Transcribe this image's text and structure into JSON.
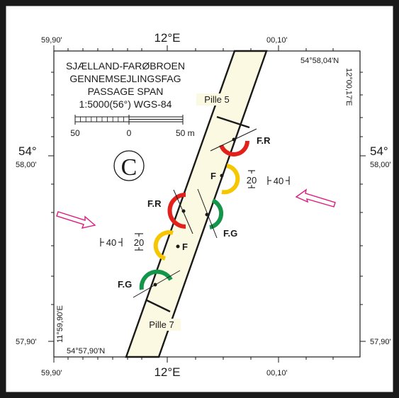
{
  "title": {
    "line1": "SJÆLLAND-FARØBROEN",
    "line2": "GENNEMSEJLINGSFAG",
    "line3": "PASSAGE SPAN",
    "line4": "1:5000(56°) WGS-84"
  },
  "scale_bar": {
    "left": "50",
    "mid": "0",
    "right": "50 m"
  },
  "symbol": "C",
  "corners": {
    "top_right_lat": "54°58,04'N",
    "top_right_lon": "12°00,17'E",
    "bottom_left_lat": "54°57,90'N",
    "bottom_left_lon": "11°59,90'E"
  },
  "axis": {
    "top": {
      "left": "59,90'",
      "center": "12°E",
      "right": "00,10'"
    },
    "bottom": {
      "left": "59,90'",
      "center": "12°E",
      "right": "00,10'"
    },
    "left": {
      "lat_deg": "54°",
      "lat_min": "58,00'",
      "bottom": "57,90'"
    },
    "right": {
      "lat_deg": "54°",
      "lat_min": "58,00'",
      "bottom": "57,90'"
    }
  },
  "piers": {
    "north": "Pille 5",
    "south": "Pille 7"
  },
  "lights": {
    "fr_upper": "F.R",
    "f_upper": "F",
    "fr_lower": "F.R",
    "fg_right": "F.G",
    "f_lower": "F",
    "fg_lower": "F.G"
  },
  "clearances": {
    "right_height": "20",
    "right_width": "40",
    "left_height": "20",
    "left_width": "40"
  },
  "colors": {
    "red": "#e3211c",
    "yellow": "#f6c600",
    "green": "#14964a",
    "magenta": "#e0197d",
    "bridge_fill": "#fcf9e2",
    "frame": "#1a1a1a"
  }
}
